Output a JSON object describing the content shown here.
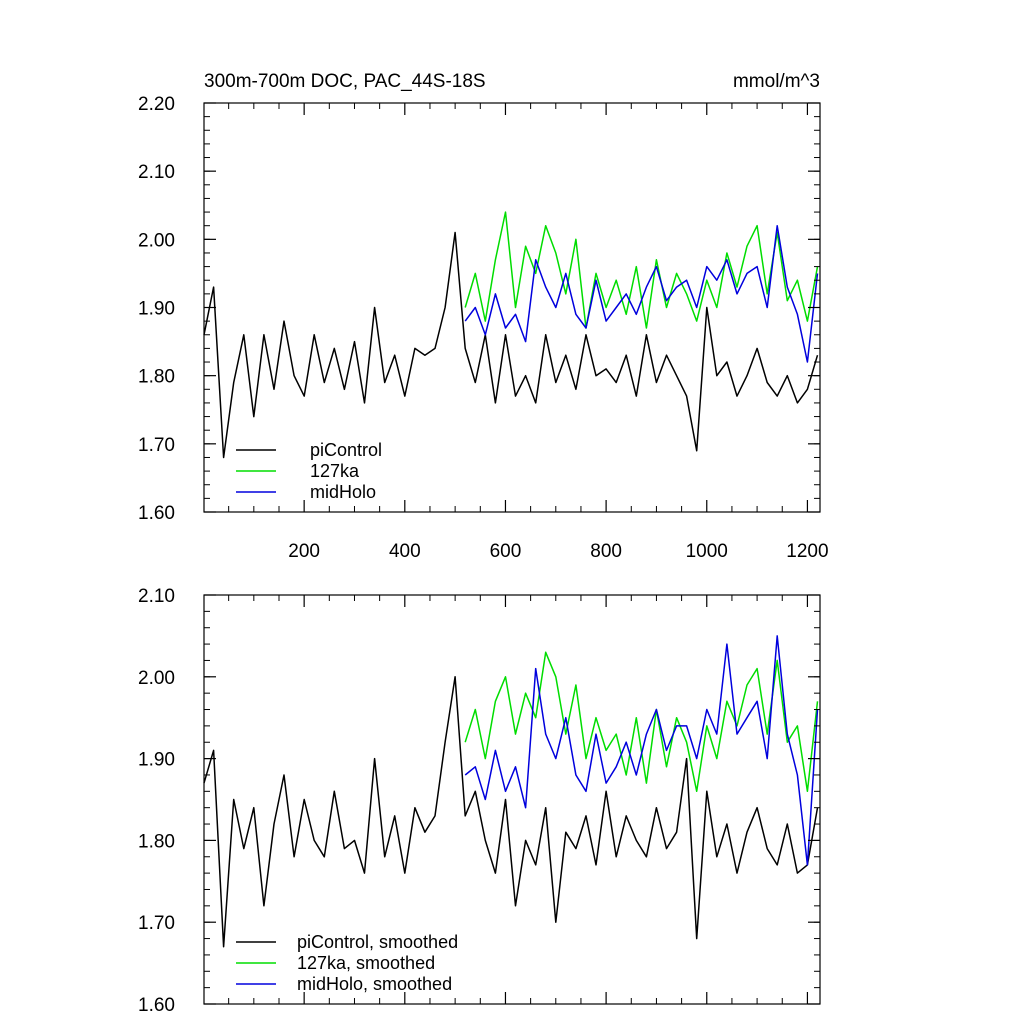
{
  "colors": {
    "piControl": "#000000",
    "127ka": "#00dd00",
    "midHolo": "#0000dd"
  },
  "chart_data": [
    {
      "type": "line",
      "title": "300m-700m DOC, PAC_44S-18S",
      "units": "mmol/m^3",
      "xlim": [
        1,
        1225
      ],
      "ylim": [
        1.6,
        2.2
      ],
      "yticks": [
        1.6,
        1.7,
        1.8,
        1.9,
        2.0,
        2.1,
        2.2
      ],
      "ytick_labels": [
        "1.60",
        "1.70",
        "1.80",
        "1.90",
        "2.00",
        "2.10",
        "2.20"
      ],
      "xticks": [
        200,
        400,
        600,
        800,
        1000,
        1200
      ],
      "xtick_labels": [
        "200",
        "400",
        "600",
        "800",
        "1000",
        "1200"
      ],
      "legend_position": "bottom-left",
      "series": [
        {
          "name": "piControl",
          "color_key": "piControl",
          "x": [
            1,
            20,
            40,
            60,
            80,
            100,
            120,
            140,
            160,
            180,
            200,
            220,
            240,
            260,
            280,
            300,
            320,
            340,
            360,
            380,
            400,
            420,
            440,
            460,
            480,
            500,
            520,
            540,
            560,
            580,
            600,
            620,
            640,
            660,
            680,
            700,
            720,
            740,
            760,
            780,
            800,
            820,
            840,
            860,
            880,
            900,
            920,
            940,
            960,
            980,
            1000,
            1020,
            1040,
            1060,
            1080,
            1100,
            1120,
            1140,
            1160,
            1180,
            1200,
            1220
          ],
          "values": [
            1.86,
            1.93,
            1.68,
            1.79,
            1.86,
            1.74,
            1.86,
            1.78,
            1.88,
            1.8,
            1.77,
            1.86,
            1.79,
            1.84,
            1.78,
            1.85,
            1.76,
            1.9,
            1.79,
            1.83,
            1.77,
            1.84,
            1.83,
            1.84,
            1.9,
            2.01,
            1.84,
            1.79,
            1.86,
            1.76,
            1.86,
            1.77,
            1.8,
            1.76,
            1.86,
            1.79,
            1.83,
            1.78,
            1.86,
            1.8,
            1.81,
            1.79,
            1.83,
            1.77,
            1.86,
            1.79,
            1.83,
            1.8,
            1.77,
            1.69,
            1.9,
            1.8,
            1.82,
            1.77,
            1.8,
            1.84,
            1.79,
            1.77,
            1.8,
            1.76,
            1.78,
            1.83
          ]
        },
        {
          "name": "127ka",
          "color_key": "127ka",
          "x": [
            520,
            540,
            560,
            580,
            600,
            620,
            640,
            660,
            680,
            700,
            720,
            740,
            760,
            780,
            800,
            820,
            840,
            860,
            880,
            900,
            920,
            940,
            960,
            980,
            1000,
            1020,
            1040,
            1060,
            1080,
            1100,
            1120,
            1140,
            1160,
            1180,
            1200,
            1220
          ],
          "values": [
            1.9,
            1.95,
            1.88,
            1.97,
            2.04,
            1.9,
            1.99,
            1.95,
            2.02,
            1.98,
            1.92,
            2.0,
            1.87,
            1.95,
            1.9,
            1.94,
            1.89,
            1.96,
            1.87,
            1.97,
            1.9,
            1.95,
            1.92,
            1.88,
            1.94,
            1.9,
            1.98,
            1.93,
            1.99,
            2.02,
            1.92,
            2.01,
            1.91,
            1.94,
            1.88,
            1.96
          ]
        },
        {
          "name": "midHolo",
          "color_key": "midHolo",
          "x": [
            520,
            540,
            560,
            580,
            600,
            620,
            640,
            660,
            680,
            700,
            720,
            740,
            760,
            780,
            800,
            820,
            840,
            860,
            880,
            900,
            920,
            940,
            960,
            980,
            1000,
            1020,
            1040,
            1060,
            1080,
            1100,
            1120,
            1140,
            1160,
            1180,
            1200,
            1220
          ],
          "values": [
            1.88,
            1.9,
            1.86,
            1.92,
            1.87,
            1.89,
            1.85,
            1.97,
            1.93,
            1.9,
            1.95,
            1.89,
            1.87,
            1.94,
            1.88,
            1.9,
            1.92,
            1.89,
            1.93,
            1.96,
            1.91,
            1.93,
            1.94,
            1.9,
            1.96,
            1.94,
            1.97,
            1.92,
            1.95,
            1.96,
            1.9,
            2.02,
            1.93,
            1.89,
            1.82,
            1.95
          ]
        }
      ]
    },
    {
      "type": "line",
      "xlim": [
        1,
        1225
      ],
      "ylim": [
        1.6,
        2.1
      ],
      "yticks": [
        1.6,
        1.7,
        1.8,
        1.9,
        2.0,
        2.1
      ],
      "ytick_labels": [
        "1.60",
        "1.70",
        "1.80",
        "1.90",
        "2.00",
        "2.10"
      ],
      "xticks": [
        200,
        400,
        600,
        800,
        1000,
        1200
      ],
      "legend_position": "bottom-left",
      "series": [
        {
          "name": "piControl, smoothed",
          "color_key": "piControl",
          "x": [
            1,
            20,
            40,
            60,
            80,
            100,
            120,
            140,
            160,
            180,
            200,
            220,
            240,
            260,
            280,
            300,
            320,
            340,
            360,
            380,
            400,
            420,
            440,
            460,
            480,
            500,
            520,
            540,
            560,
            580,
            600,
            620,
            640,
            660,
            680,
            700,
            720,
            740,
            760,
            780,
            800,
            820,
            840,
            860,
            880,
            900,
            920,
            940,
            960,
            980,
            1000,
            1020,
            1040,
            1060,
            1080,
            1100,
            1120,
            1140,
            1160,
            1180,
            1200,
            1220
          ],
          "values": [
            1.87,
            1.91,
            1.67,
            1.85,
            1.79,
            1.84,
            1.72,
            1.82,
            1.88,
            1.78,
            1.85,
            1.8,
            1.78,
            1.86,
            1.79,
            1.8,
            1.76,
            1.9,
            1.78,
            1.83,
            1.76,
            1.84,
            1.81,
            1.83,
            1.92,
            2.0,
            1.83,
            1.86,
            1.8,
            1.76,
            1.85,
            1.72,
            1.8,
            1.77,
            1.84,
            1.7,
            1.81,
            1.79,
            1.83,
            1.77,
            1.86,
            1.78,
            1.83,
            1.8,
            1.78,
            1.84,
            1.79,
            1.81,
            1.9,
            1.68,
            1.86,
            1.78,
            1.82,
            1.76,
            1.81,
            1.84,
            1.79,
            1.77,
            1.82,
            1.76,
            1.77,
            1.84
          ]
        },
        {
          "name": "127ka, smoothed",
          "color_key": "127ka",
          "x": [
            520,
            540,
            560,
            580,
            600,
            620,
            640,
            660,
            680,
            700,
            720,
            740,
            760,
            780,
            800,
            820,
            840,
            860,
            880,
            900,
            920,
            940,
            960,
            980,
            1000,
            1020,
            1040,
            1060,
            1080,
            1100,
            1120,
            1140,
            1160,
            1180,
            1200,
            1220
          ],
          "values": [
            1.92,
            1.96,
            1.9,
            1.97,
            2.0,
            1.93,
            1.98,
            1.95,
            2.03,
            2.0,
            1.93,
            1.99,
            1.9,
            1.95,
            1.91,
            1.93,
            1.88,
            1.95,
            1.87,
            1.96,
            1.89,
            1.95,
            1.92,
            1.86,
            1.94,
            1.9,
            1.97,
            1.94,
            1.99,
            2.01,
            1.93,
            2.02,
            1.92,
            1.94,
            1.86,
            1.97
          ]
        },
        {
          "name": "midHolo, smoothed",
          "color_key": "midHolo",
          "x": [
            520,
            540,
            560,
            580,
            600,
            620,
            640,
            660,
            680,
            700,
            720,
            740,
            760,
            780,
            800,
            820,
            840,
            860,
            880,
            900,
            920,
            940,
            960,
            980,
            1000,
            1020,
            1040,
            1060,
            1080,
            1100,
            1120,
            1140,
            1160,
            1180,
            1200,
            1220
          ],
          "values": [
            1.88,
            1.89,
            1.85,
            1.91,
            1.86,
            1.89,
            1.84,
            2.01,
            1.93,
            1.9,
            1.95,
            1.88,
            1.86,
            1.93,
            1.87,
            1.89,
            1.92,
            1.88,
            1.93,
            1.96,
            1.91,
            1.94,
            1.94,
            1.9,
            1.96,
            1.93,
            2.04,
            1.93,
            1.95,
            1.97,
            1.9,
            2.05,
            1.93,
            1.88,
            1.77,
            1.96
          ]
        }
      ]
    }
  ]
}
